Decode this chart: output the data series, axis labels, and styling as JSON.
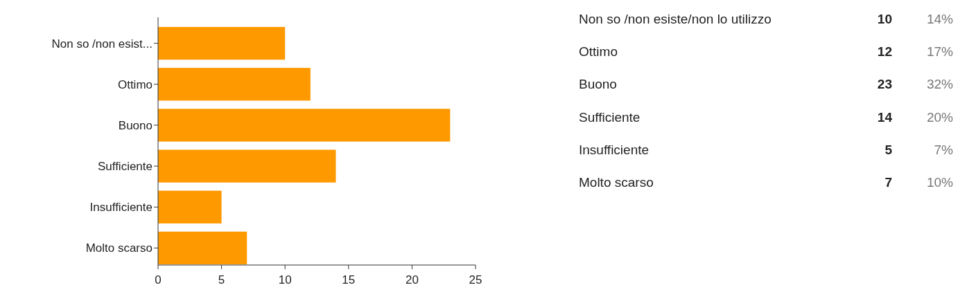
{
  "chart_data": [
    {
      "type": "bar",
      "orientation": "horizontal",
      "categories": [
        "Non so /non esist...",
        "Ottimo",
        "Buono",
        "Sufficiente",
        "Insufficiente",
        "Molto scarso"
      ],
      "values": [
        10,
        12,
        23,
        14,
        5,
        7
      ],
      "color": "#ff9900",
      "xlim": [
        0,
        25
      ],
      "xticks": [
        0,
        5,
        10,
        15,
        20,
        25
      ]
    },
    {
      "type": "other",
      "categories": [
        "Non so /non esiste/non lo utilizzo",
        "Ottimo",
        "Buono",
        "Sufficiente",
        "Insufficiente",
        "Molto scarso"
      ],
      "data_labels": true,
      "series": [
        {
          "values": [
            10,
            12,
            23,
            14,
            5,
            7
          ]
        },
        {
          "values": [
            14,
            17,
            32,
            20,
            7,
            10
          ],
          "value_labels": [
            "14%",
            "17%",
            "32%",
            "20%",
            "7%",
            "10%"
          ]
        }
      ]
    }
  ]
}
